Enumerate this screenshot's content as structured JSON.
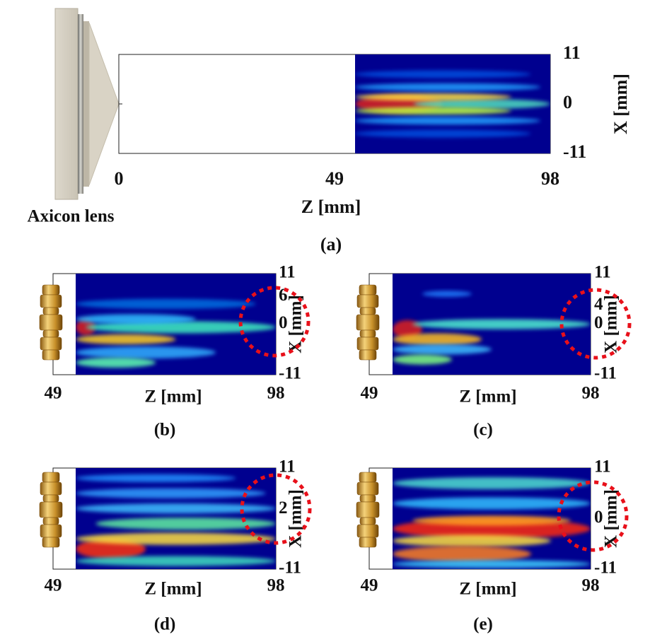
{
  "panels": [
    {
      "caption": "(a)",
      "x_label": "Z [mm]",
      "y_label": "X [mm]",
      "x_ticks": [
        0,
        49,
        98
      ],
      "y_ticks": [
        11,
        0,
        -11
      ],
      "lens_label": "Axicon lens"
    },
    {
      "caption": "(b)",
      "x_label": "Z [mm]",
      "y_label": "X [mm]",
      "x_ticks": [
        49,
        98
      ],
      "y_ticks": [
        11,
        6,
        0,
        -11
      ]
    },
    {
      "caption": "(c)",
      "x_label": "Z [mm]",
      "y_label": "X [mm]",
      "x_ticks": [
        49,
        98
      ],
      "y_ticks": [
        11,
        4,
        0,
        -11
      ]
    },
    {
      "caption": "(d)",
      "x_label": "Z [mm]",
      "y_label": "X [mm]",
      "x_ticks": [
        49,
        98
      ],
      "y_ticks": [
        11,
        2,
        -11
      ]
    },
    {
      "caption": "(e)",
      "x_label": "Z [mm]",
      "y_label": "X [mm]",
      "x_ticks": [
        49,
        98
      ],
      "y_ticks": [
        11,
        0,
        -11
      ]
    }
  ]
}
